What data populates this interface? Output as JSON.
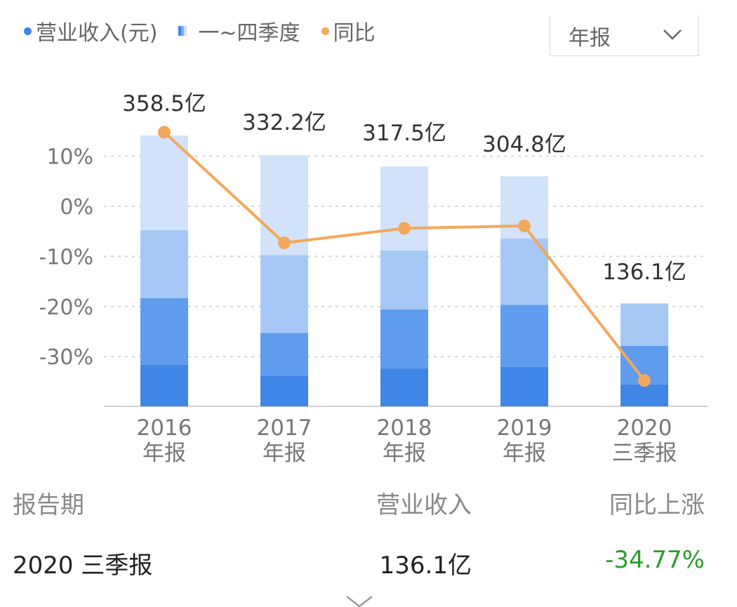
{
  "legend": {
    "revenue_label": "营业收入(元)",
    "quarters_label": "一~四季度",
    "yoy_label": "同比"
  },
  "period_select": {
    "value": "年报",
    "icon": "chevron-down-icon"
  },
  "colors": {
    "q1": "#3f86e6",
    "q2": "#5f9ced",
    "q3": "#a6c8f4",
    "q4": "#d1e2fa",
    "line": "#f3a85c",
    "revenue_dot": "#3f86e6",
    "grid": "#d8d8d8",
    "negative": "#2a9d2a"
  },
  "chart_data": {
    "type": "bar",
    "categories": [
      [
        "2016",
        "年报"
      ],
      [
        "2017",
        "年报"
      ],
      [
        "2018",
        "年报"
      ],
      [
        "2019",
        "年报"
      ],
      [
        "2020",
        "三季报"
      ]
    ],
    "bar_top_labels": [
      "358.5亿",
      "332.2亿",
      "317.5亿",
      "304.8亿",
      "136.1亿"
    ],
    "revenue": [
      358.5,
      332.2,
      317.5,
      304.8,
      136.1
    ],
    "quarter_series": [
      {
        "name": "Q1",
        "values": [
          55,
          40,
          50,
          52,
          29
        ]
      },
      {
        "name": "Q2",
        "values": [
          88,
          57,
          78,
          82,
          51
        ]
      },
      {
        "name": "Q3",
        "values": [
          90,
          103,
          78,
          88,
          56
        ]
      },
      {
        "name": "Q4",
        "values": [
          125,
          132,
          111,
          82,
          0
        ]
      }
    ],
    "yoy_series": {
      "values": [
        14.8,
        -7.3,
        -4.4,
        -3.9,
        -34.77
      ]
    },
    "y_axis": {
      "ticks": [
        10,
        0,
        -10,
        -20,
        -30
      ],
      "tick_labels": [
        "10%",
        "0%",
        "-10%",
        "-20%",
        "-30%"
      ],
      "range": [
        -39,
        20
      ]
    },
    "grid": true,
    "legend_position": "top-left"
  },
  "table": {
    "headers": {
      "period": "报告期",
      "revenue": "营业收入",
      "yoy": "同比上涨"
    },
    "row": {
      "period": "2020 三季报",
      "revenue": "136.1亿",
      "yoy": "-34.77%"
    }
  }
}
